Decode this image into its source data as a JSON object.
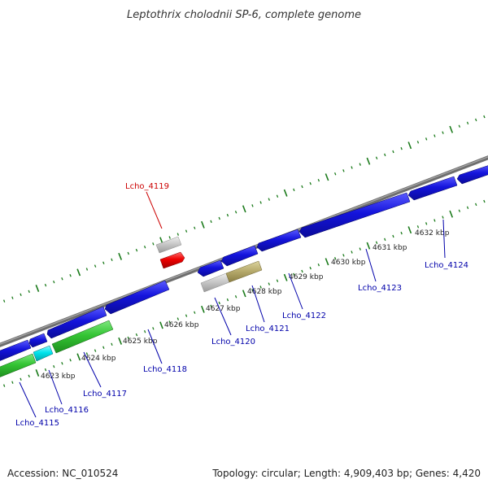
{
  "title": "Leptothrix cholodnii SP-6, complete genome",
  "footer": {
    "accession": "Accession: NC_010524",
    "summary": "Topology: circular; Length: 4,909,403 bp; Genes: 4,420"
  },
  "colors": {
    "backbone": "#808080",
    "tick": "#1a7a1a",
    "cds_blue": "#1414dc",
    "cds_green": "#34c434",
    "cds_cyan": "#00e4ec",
    "cds_red": "#ee0000",
    "cds_grey": "#c4c4c4",
    "cds_khaki": "#b8ac6e",
    "label_default": "#0000aa",
    "label_highlight": "#cc0000"
  },
  "scale": {
    "unit": "kbp",
    "markers": [
      "4623 kbp",
      "4624 kbp",
      "4625 kbp",
      "4626 kbp",
      "4627 kbp",
      "4628 kbp",
      "4629 kbp",
      "4630 kbp",
      "4631 kbp",
      "4632 kbp"
    ]
  },
  "genes": [
    {
      "name": "Lcho_4115",
      "color": "cds_blue"
    },
    {
      "name": "Lcho_4116",
      "color": "cds_cyan"
    },
    {
      "name": "Lcho_4117",
      "color": "cds_green"
    },
    {
      "name": "Lcho_4118",
      "color": "cds_blue"
    },
    {
      "name": "Lcho_4119",
      "color": "cds_red",
      "highlight": true
    },
    {
      "name": "Lcho_4120",
      "color": "cds_grey"
    },
    {
      "name": "Lcho_4121",
      "color": "cds_khaki"
    },
    {
      "name": "Lcho_4122",
      "color": "cds_blue"
    },
    {
      "name": "Lcho_4123",
      "color": "cds_blue"
    },
    {
      "name": "Lcho_4124",
      "color": "cds_blue"
    }
  ]
}
